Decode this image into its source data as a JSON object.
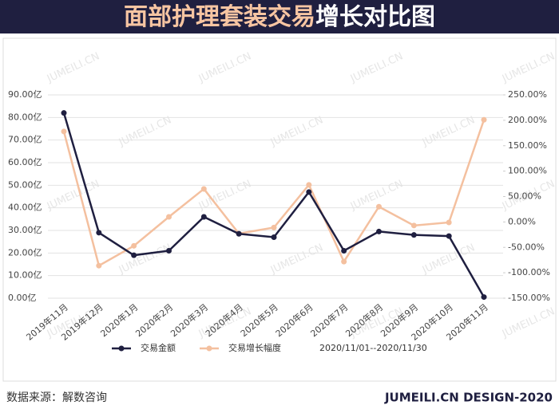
{
  "chart_data": {
    "type": "line",
    "title": {
      "highlight": "面部护理套装交易",
      "rest": "增长对比图"
    },
    "watermark": "JUMEILI.CN",
    "categories": [
      "2019年11月",
      "2019年12月",
      "2020年1月",
      "2020年2月",
      "2020年3月",
      "2020年4月",
      "2020年5月",
      "2020年6月",
      "2020年7月",
      "2020年8月",
      "2020年9月",
      "2020年10月",
      "2020年11月"
    ],
    "series": [
      {
        "name": "交易金额",
        "color": "#1f1f40",
        "values": [
          82,
          29,
          19,
          21,
          36,
          28.5,
          27,
          47,
          21,
          29.5,
          28,
          27.5,
          0.5
        ]
      },
      {
        "name": "交易增长幅度",
        "color": "#f4c09f",
        "axis": "y2",
        "values": [
          178,
          -86,
          -47,
          10,
          65,
          -23,
          -11,
          73,
          -78,
          30,
          -7,
          -1,
          201
        ]
      }
    ],
    "ylim": [
      0,
      90
    ],
    "yticks": [
      {
        "value": 0,
        "label": "0.00亿"
      },
      {
        "value": 10,
        "label": "10.00亿"
      },
      {
        "value": 20,
        "label": "20.00亿"
      },
      {
        "value": 30,
        "label": "30.00亿"
      },
      {
        "value": 40,
        "label": "40.00亿"
      },
      {
        "value": 50,
        "label": "50.00亿"
      },
      {
        "value": 60,
        "label": "60.00亿"
      },
      {
        "value": 70,
        "label": "70.00亿"
      },
      {
        "value": 80,
        "label": "80.00亿"
      },
      {
        "value": 90,
        "label": "90.00亿"
      }
    ],
    "y2lim": [
      -150,
      250
    ],
    "y2ticks": [
      {
        "value": -150,
        "label": "-150.00%"
      },
      {
        "value": -100,
        "label": "-100.00%"
      },
      {
        "value": -50,
        "label": "-50.00%"
      },
      {
        "value": 0,
        "label": "0.00%"
      },
      {
        "value": 50,
        "label": "50.00%"
      },
      {
        "value": 100,
        "label": "100.00%"
      },
      {
        "value": 150,
        "label": "150.00%"
      },
      {
        "value": 200,
        "label": "200.00%"
      },
      {
        "value": 250,
        "label": "250.00%"
      }
    ],
    "date_range": "2020/11/01--2020/11/30",
    "source": "数据来源：解数咨询",
    "credit": "JUMEILI.CN DESIGN-2020"
  }
}
